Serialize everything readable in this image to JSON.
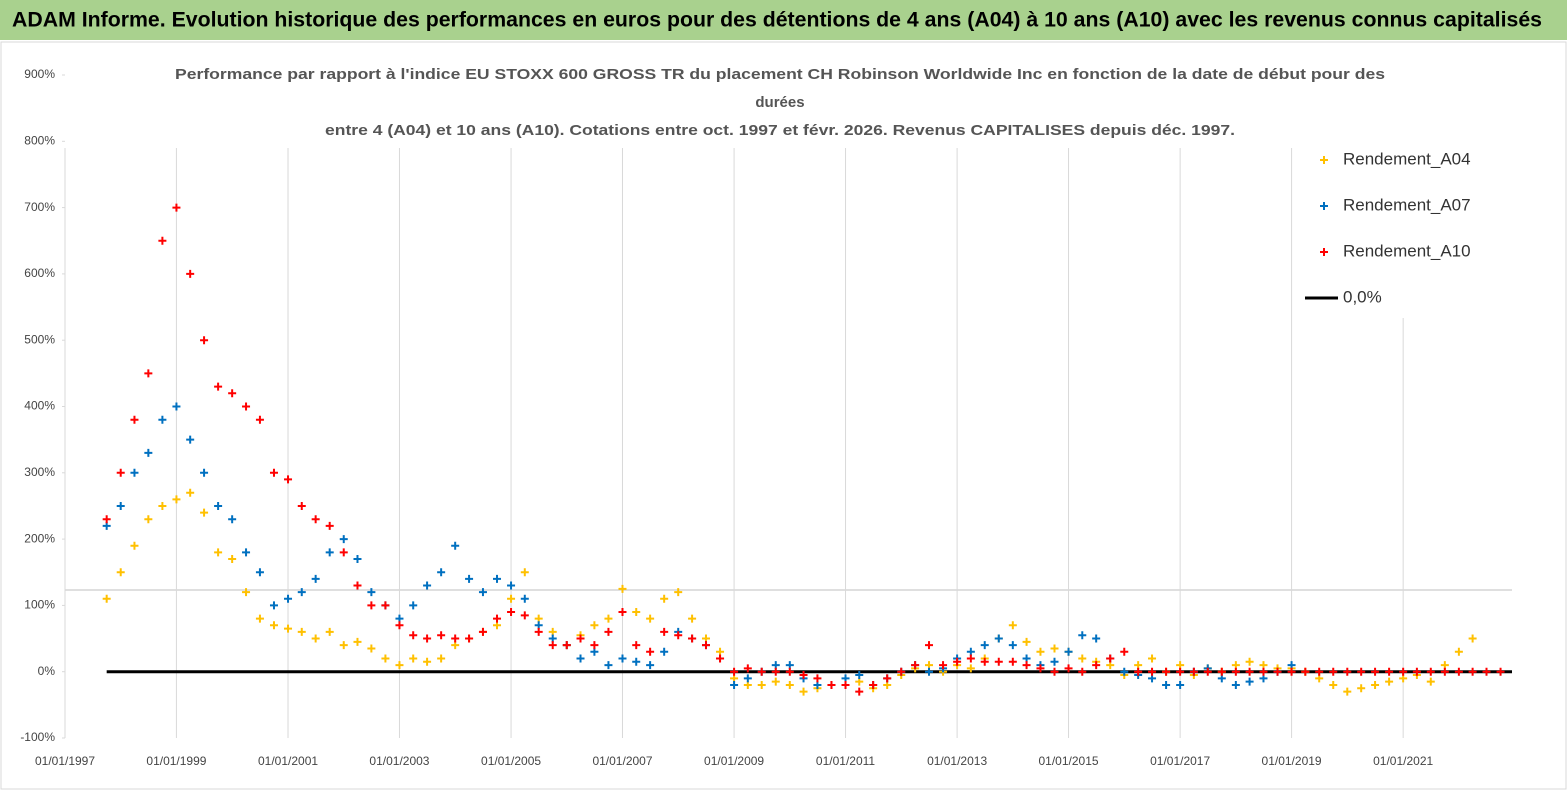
{
  "header": {
    "title": "ADAM Informe. Evolution historique des performances en euros pour des détentions de 4 ans (A04) à 10 ans (A10) avec les revenus connus capitalisés"
  },
  "chart_data": {
    "type": "scatter",
    "title": [
      "Performance par rapport à l'indice EU STOXX 600 GROSS TR  du placement CH Robinson Worldwide Inc en fonction de la date de début pour des",
      "durées",
      "entre 4 (A04) et 10 ans (A10). Cotations entre oct. 1997 et févr. 2026. Revenus CAPITALISES depuis déc. 1997."
    ],
    "x": [
      "01/10/1997",
      "01/01/1998",
      "01/04/1998",
      "01/07/1998",
      "01/10/1998",
      "01/01/1999",
      "01/04/1999",
      "01/07/1999",
      "01/10/1999",
      "01/01/2000",
      "01/04/2000",
      "01/07/2000",
      "01/10/2000",
      "01/01/2001",
      "01/04/2001",
      "01/07/2001",
      "01/10/2001",
      "01/01/2002",
      "01/04/2002",
      "01/07/2002",
      "01/10/2002",
      "01/01/2003",
      "01/04/2003",
      "01/07/2003",
      "01/10/2003",
      "01/01/2004",
      "01/04/2004",
      "01/07/2004",
      "01/10/2004",
      "01/01/2005",
      "01/04/2005",
      "01/07/2005",
      "01/10/2005",
      "01/01/2006",
      "01/04/2006",
      "01/07/2006",
      "01/10/2006",
      "01/01/2007",
      "01/04/2007",
      "01/07/2007",
      "01/10/2007",
      "01/01/2008",
      "01/04/2008",
      "01/07/2008",
      "01/10/2008",
      "01/01/2009",
      "01/04/2009",
      "01/07/2009",
      "01/10/2009",
      "01/01/2010",
      "01/04/2010",
      "01/07/2010",
      "01/10/2010",
      "01/01/2011",
      "01/04/2011",
      "01/07/2011",
      "01/10/2011",
      "01/01/2012",
      "01/04/2012",
      "01/07/2012",
      "01/10/2012",
      "01/01/2013",
      "01/04/2013",
      "01/07/2013",
      "01/10/2013",
      "01/01/2014",
      "01/04/2014",
      "01/07/2014",
      "01/10/2014",
      "01/01/2015",
      "01/04/2015",
      "01/07/2015",
      "01/10/2015",
      "01/01/2016",
      "01/04/2016",
      "01/07/2016",
      "01/10/2016",
      "01/01/2017",
      "01/04/2017",
      "01/07/2017",
      "01/10/2017",
      "01/01/2018",
      "01/04/2018",
      "01/07/2018",
      "01/10/2018",
      "01/01/2019",
      "01/04/2019",
      "01/07/2019",
      "01/10/2019",
      "01/01/2020",
      "01/04/2020",
      "01/07/2020",
      "01/10/2020",
      "01/01/2021",
      "01/04/2021",
      "01/07/2021",
      "01/10/2021",
      "01/01/2022",
      "01/04/2022",
      "01/07/2022",
      "01/10/2022"
    ],
    "series": [
      {
        "name": "Rendement_A04",
        "color": "#ffc000",
        "values": [
          110,
          150,
          190,
          230,
          250,
          260,
          270,
          240,
          180,
          170,
          120,
          80,
          70,
          65,
          60,
          50,
          60,
          40,
          45,
          35,
          20,
          10,
          20,
          15,
          20,
          40,
          50,
          60,
          70,
          110,
          150,
          80,
          60,
          40,
          55,
          70,
          80,
          125,
          90,
          80,
          110,
          120,
          80,
          50,
          30,
          -10,
          -20,
          -20,
          -15,
          -20,
          -30,
          -25,
          -20,
          -20,
          -15,
          -25,
          -20,
          -5,
          5,
          10,
          0,
          10,
          5,
          20,
          50,
          70,
          45,
          30,
          35,
          30,
          20,
          15,
          10,
          -5,
          10,
          20,
          0,
          10,
          -5,
          5,
          0,
          10,
          15,
          10,
          5,
          5,
          0,
          -10,
          -20,
          -30,
          -25,
          -20,
          -15,
          -10,
          -5,
          -15,
          10,
          30,
          50,
          null,
          null
        ]
      },
      {
        "name": "Rendement_A07",
        "color": "#0070c0",
        "values": [
          220,
          250,
          300,
          330,
          380,
          400,
          350,
          300,
          250,
          230,
          180,
          150,
          100,
          110,
          120,
          140,
          180,
          200,
          170,
          120,
          100,
          80,
          100,
          130,
          150,
          190,
          140,
          120,
          140,
          130,
          110,
          70,
          50,
          40,
          20,
          30,
          10,
          20,
          15,
          10,
          30,
          60,
          50,
          40,
          20,
          -20,
          -10,
          0,
          10,
          10,
          -10,
          -20,
          -20,
          -10,
          -5,
          -20,
          -10,
          0,
          10,
          0,
          5,
          20,
          30,
          40,
          50,
          40,
          20,
          10,
          15,
          30,
          55,
          50,
          20,
          0,
          -5,
          -10,
          -20,
          -20,
          0,
          5,
          -10,
          -20,
          -15,
          -10,
          0,
          10,
          null,
          null,
          null,
          null,
          null,
          null,
          null,
          null,
          null,
          null,
          null,
          null,
          null,
          null,
          null
        ]
      },
      {
        "name": "Rendement_A10",
        "color": "#ff0000",
        "values": [
          230,
          300,
          380,
          450,
          650,
          700,
          600,
          500,
          430,
          420,
          400,
          380,
          300,
          290,
          250,
          230,
          220,
          180,
          130,
          100,
          100,
          70,
          55,
          50,
          55,
          50,
          50,
          60,
          80,
          90,
          85,
          60,
          40,
          40,
          50,
          40,
          60,
          90,
          40,
          30,
          60,
          55,
          50,
          40,
          20,
          0,
          5,
          0,
          0,
          0,
          -5,
          -10,
          -20,
          -20,
          -30,
          -20,
          -10,
          0,
          10,
          40,
          10,
          15,
          20,
          15,
          15,
          15,
          10,
          5,
          0,
          5,
          0,
          10,
          20,
          30,
          0,
          0,
          0,
          0,
          0,
          0,
          0,
          0,
          0,
          0,
          0,
          0,
          0,
          0,
          0,
          0,
          0,
          0,
          0,
          0,
          0,
          0,
          0,
          0,
          0,
          0,
          0
        ]
      }
    ],
    "reference_line": {
      "name": "0,0%",
      "value": 0,
      "color": "#000000"
    },
    "xlim": [
      "01/01/1997",
      "15/12/2022"
    ],
    "xticks": [
      "01/01/1997",
      "01/01/1999",
      "01/01/2001",
      "01/01/2003",
      "01/01/2005",
      "01/01/2007",
      "01/01/2009",
      "01/01/2011",
      "01/01/2013",
      "01/01/2015",
      "01/01/2017",
      "01/01/2019",
      "01/01/2021"
    ],
    "ylim": [
      -100,
      900
    ],
    "yticks": [
      {
        "value": -100,
        "label": "-100%"
      },
      {
        "value": 0,
        "label": "0%"
      },
      {
        "value": 100,
        "label": "100%"
      },
      {
        "value": 200,
        "label": "200%"
      },
      {
        "value": 300,
        "label": "300%"
      },
      {
        "value": 400,
        "label": "400%"
      },
      {
        "value": 500,
        "label": "500%"
      },
      {
        "value": 600,
        "label": "600%"
      },
      {
        "value": 700,
        "label": "700%"
      },
      {
        "value": 800,
        "label": "800%"
      },
      {
        "value": 900,
        "label": "900%"
      }
    ],
    "grid": "x",
    "legend": "right"
  }
}
